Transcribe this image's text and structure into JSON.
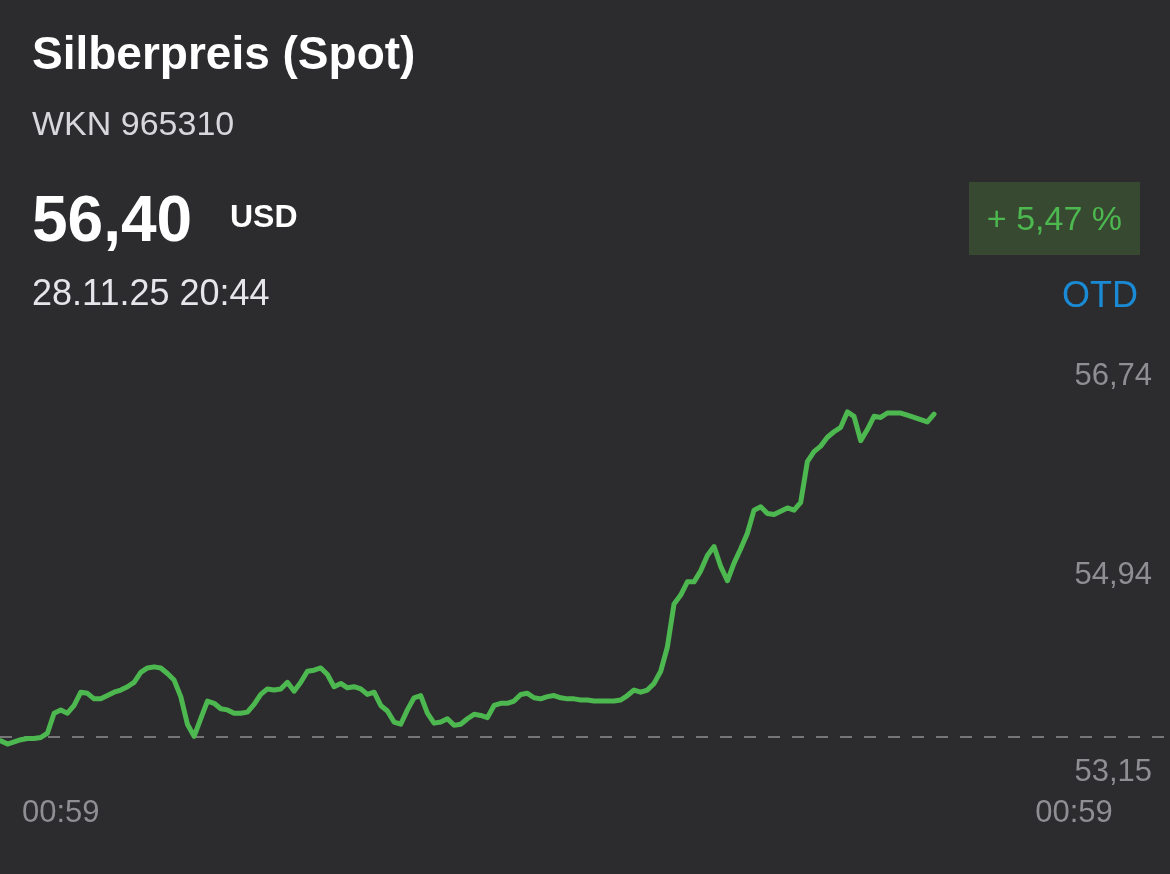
{
  "chart_data": {
    "type": "line",
    "title": "Silberpreis (Spot)",
    "subtitle": "WKN 965310",
    "annotations": [
      "56,40",
      "USD",
      "28.11.25 20:44",
      "+ 5,47 %",
      "OTD"
    ],
    "categories": [
      null,
      null,
      null,
      null,
      null,
      null,
      null,
      null,
      null,
      "00:59",
      null,
      null,
      null,
      null,
      null,
      null,
      null,
      null,
      null,
      null,
      null,
      null,
      null,
      null,
      null,
      null,
      null,
      null,
      null,
      null,
      null,
      null,
      null,
      null,
      null,
      null,
      null,
      null,
      null,
      null,
      null,
      null,
      null,
      null,
      null,
      null,
      null,
      null,
      null,
      null,
      null,
      null,
      null,
      null,
      null,
      null,
      null,
      null,
      null,
      null,
      null,
      null,
      null,
      null,
      null,
      null,
      null,
      null,
      null,
      null,
      null,
      null,
      null,
      null,
      null,
      null,
      null,
      null,
      null,
      null,
      null,
      null,
      null,
      null,
      null,
      null,
      null,
      null,
      null,
      null,
      null,
      null,
      null,
      null,
      null,
      null,
      null,
      null,
      null,
      null,
      null,
      null,
      null,
      null,
      null,
      null,
      null,
      null,
      null,
      null,
      null,
      null,
      null,
      null,
      null,
      null,
      null,
      null,
      null,
      null,
      null,
      null,
      null,
      null,
      null,
      null,
      null,
      null,
      null,
      null,
      null,
      null,
      null,
      null,
      null,
      null,
      null,
      null,
      null,
      null,
      null,
      null,
      null,
      null,
      null,
      null,
      null,
      null,
      null,
      null,
      null,
      null,
      null,
      null,
      null,
      null,
      null,
      null,
      null,
      null,
      null,
      "00:59",
      null,
      null,
      null,
      null,
      null,
      null,
      null,
      null,
      null
    ],
    "series": [
      {
        "color": "#4cb84f",
        "values": [
          53.44,
          53.41,
          53.43,
          53.45,
          53.46,
          53.46,
          53.47,
          53.51,
          53.69,
          53.72,
          53.69,
          53.76,
          53.88,
          53.87,
          53.82,
          53.82,
          53.85,
          53.88,
          53.9,
          53.93,
          53.97,
          54.06,
          54.1,
          54.11,
          54.1,
          54.05,
          53.99,
          53.84,
          53.59,
          53.48,
          53.64,
          53.8,
          53.78,
          53.73,
          53.72,
          53.69,
          53.69,
          53.7,
          53.77,
          53.86,
          53.91,
          53.9,
          53.91,
          53.97,
          53.89,
          53.97,
          54.07,
          54.08,
          54.1,
          54.04,
          53.93,
          53.96,
          53.92,
          53.93,
          53.91,
          53.86,
          53.88,
          53.76,
          53.71,
          53.61,
          53.59,
          53.72,
          53.83,
          53.85,
          53.69,
          53.6,
          53.61,
          53.64,
          53.58,
          53.59,
          53.64,
          53.68,
          53.67,
          53.65,
          53.76,
          53.78,
          53.78,
          53.8,
          53.86,
          53.87,
          53.83,
          53.82,
          53.84,
          53.85,
          53.83,
          53.82,
          53.82,
          53.81,
          53.81,
          53.8,
          53.8,
          53.8,
          53.8,
          53.81,
          53.85,
          53.9,
          53.88,
          53.9,
          53.96,
          54.07,
          54.29,
          54.68,
          54.76,
          54.88,
          54.88,
          54.98,
          55.12,
          55.2,
          55.02,
          54.89,
          55.05,
          55.18,
          55.32,
          55.53,
          55.56,
          55.5,
          55.49,
          55.52,
          55.55,
          55.53,
          55.6,
          55.97,
          56.06,
          56.11,
          56.19,
          56.24,
          56.28,
          56.42,
          56.38,
          56.16,
          56.26,
          56.38,
          56.37,
          56.41,
          56.41,
          56.41,
          56.39,
          56.37,
          56.35,
          56.33,
          56.4,
          null,
          null,
          null,
          null,
          null,
          null,
          null,
          null,
          null,
          null,
          null,
          null,
          null,
          null,
          null,
          null,
          null,
          null,
          null,
          null,
          null,
          null,
          null,
          null,
          null,
          null,
          null,
          null,
          null,
          null
        ]
      }
    ],
    "ylim": [
      53.15,
      56.74
    ],
    "yticks": [
      {
        "value": 53.15,
        "label": "53,15"
      },
      {
        "value": 54.94,
        "label": "54,94"
      },
      {
        "value": 56.74,
        "label": "56,74"
      }
    ],
    "ref_lines": [
      {
        "axis": "y",
        "value": 53.475,
        "color": "#8e8e93",
        "line_style": "dashed"
      }
    ]
  }
}
